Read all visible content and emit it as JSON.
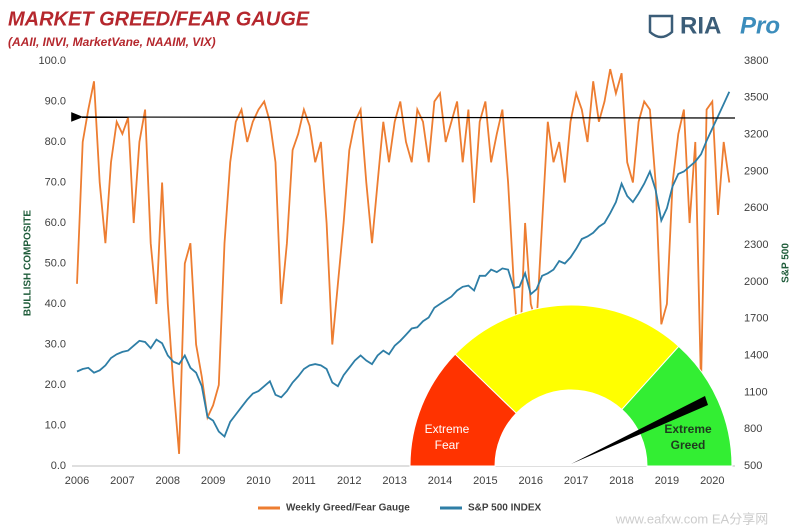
{
  "chart_data": {
    "type": "line",
    "title": "MARKET GREED/FEAR GAUGE",
    "subtitle": "(AAII, INVI, MarketVane, NAAIM, VIX)",
    "y_label": "BULLISH COMPOSITE",
    "y2_label": "S&P 500",
    "logo": {
      "name": "RIA",
      "suffix": "Pro"
    },
    "watermark": "www.eafxw.com  EA分享网",
    "gauge": {
      "fear_label": "Extreme Fear",
      "greed_label": "Extreme Greed"
    },
    "xlim": [
      2006,
      2020.5
    ],
    "xticks": [
      2006,
      2007,
      2008,
      2009,
      2010,
      2011,
      2012,
      2013,
      2014,
      2015,
      2016,
      2017,
      2018,
      2019,
      2020
    ],
    "ylim": [
      0,
      100
    ],
    "yticks": [
      {
        "value": 0,
        "label": "0.0"
      },
      {
        "value": 10,
        "label": "10.0"
      },
      {
        "value": 20,
        "label": "20.0"
      },
      {
        "value": 30,
        "label": "30.0"
      },
      {
        "value": 40,
        "label": "40.0"
      },
      {
        "value": 50,
        "label": "50.0"
      },
      {
        "value": 60,
        "label": "60.0"
      },
      {
        "value": 70,
        "label": "70.0"
      },
      {
        "value": 80,
        "label": "80.0"
      },
      {
        "value": 90,
        "label": "90.0"
      },
      {
        "value": 100,
        "label": "100.0"
      }
    ],
    "y2lim": [
      500,
      3800
    ],
    "y2ticks": [
      500,
      800,
      1100,
      1400,
      1700,
      2000,
      2300,
      2600,
      2900,
      3200,
      3500,
      3800
    ],
    "x": [
      2006,
      2006.125,
      2006.25,
      2006.375,
      2006.5,
      2006.625,
      2006.75,
      2006.875,
      2007,
      2007.125,
      2007.25,
      2007.375,
      2007.5,
      2007.625,
      2007.75,
      2007.875,
      2008,
      2008.125,
      2008.25,
      2008.375,
      2008.5,
      2008.625,
      2008.75,
      2008.875,
      2009,
      2009.125,
      2009.25,
      2009.375,
      2009.5,
      2009.625,
      2009.75,
      2009.875,
      2010,
      2010.125,
      2010.25,
      2010.375,
      2010.5,
      2010.625,
      2010.75,
      2010.875,
      2011,
      2011.125,
      2011.25,
      2011.375,
      2011.5,
      2011.625,
      2011.75,
      2011.875,
      2012,
      2012.125,
      2012.25,
      2012.375,
      2012.5,
      2012.625,
      2012.75,
      2012.875,
      2013,
      2013.125,
      2013.25,
      2013.375,
      2013.5,
      2013.625,
      2013.75,
      2013.875,
      2014,
      2014.125,
      2014.25,
      2014.375,
      2014.5,
      2014.625,
      2014.75,
      2014.875,
      2015,
      2015.125,
      2015.25,
      2015.375,
      2015.5,
      2015.625,
      2015.75,
      2015.875,
      2016,
      2016.125,
      2016.25,
      2016.375,
      2016.5,
      2016.625,
      2016.75,
      2016.875,
      2017,
      2017.125,
      2017.25,
      2017.375,
      2017.5,
      2017.625,
      2017.75,
      2017.875,
      2018,
      2018.125,
      2018.25,
      2018.375,
      2018.5,
      2018.625,
      2018.75,
      2018.875,
      2019,
      2019.125,
      2019.25,
      2019.375,
      2019.5,
      2019.625,
      2019.75,
      2019.875,
      2020,
      2020.125,
      2020.25,
      2020.375
    ],
    "series": [
      {
        "name": "Weekly Greed/Fear Gauge",
        "color": "#ed7d31",
        "values": [
          45,
          80,
          88,
          95,
          70,
          55,
          75,
          85,
          82,
          86,
          60,
          80,
          88,
          55,
          40,
          70,
          40,
          20,
          3,
          50,
          55,
          30,
          22,
          12,
          15,
          20,
          55,
          75,
          85,
          88,
          80,
          85,
          88,
          90,
          85,
          75,
          40,
          55,
          78,
          82,
          88,
          84,
          75,
          80,
          60,
          30,
          45,
          60,
          78,
          85,
          88,
          70,
          55,
          70,
          85,
          75,
          85,
          90,
          80,
          75,
          88,
          85,
          75,
          90,
          92,
          80,
          85,
          90,
          75,
          88,
          65,
          85,
          90,
          75,
          82,
          88,
          70,
          45,
          25,
          60,
          40,
          35,
          60,
          85,
          75,
          80,
          70,
          85,
          92,
          88,
          80,
          95,
          85,
          90,
          98,
          92,
          97,
          75,
          70,
          85,
          90,
          88,
          70,
          35,
          40,
          70,
          82,
          88,
          60,
          80,
          20,
          88,
          90,
          62,
          80,
          70
        ]
      },
      {
        "name": "S&P 500 INDEX",
        "color": "#2e7ea6",
        "axis": "y2",
        "values": [
          1270,
          1290,
          1300,
          1260,
          1280,
          1320,
          1380,
          1410,
          1430,
          1440,
          1480,
          1520,
          1510,
          1460,
          1530,
          1500,
          1400,
          1350,
          1330,
          1400,
          1300,
          1260,
          1150,
          900,
          870,
          780,
          740,
          860,
          920,
          980,
          1040,
          1090,
          1110,
          1150,
          1190,
          1080,
          1060,
          1110,
          1180,
          1230,
          1290,
          1320,
          1330,
          1320,
          1290,
          1180,
          1150,
          1240,
          1300,
          1360,
          1400,
          1360,
          1330,
          1400,
          1440,
          1410,
          1480,
          1520,
          1570,
          1620,
          1630,
          1680,
          1710,
          1790,
          1820,
          1850,
          1880,
          1930,
          1960,
          1970,
          1930,
          2050,
          2050,
          2100,
          2080,
          2110,
          2100,
          1950,
          1960,
          2070,
          1900,
          1940,
          2050,
          2070,
          2100,
          2170,
          2150,
          2200,
          2270,
          2350,
          2370,
          2400,
          2450,
          2480,
          2560,
          2650,
          2800,
          2700,
          2650,
          2720,
          2800,
          2900,
          2750,
          2500,
          2600,
          2780,
          2880,
          2900,
          2940,
          2980,
          3040,
          3150,
          3250,
          3350,
          3450,
          3550
        ]
      }
    ]
  }
}
